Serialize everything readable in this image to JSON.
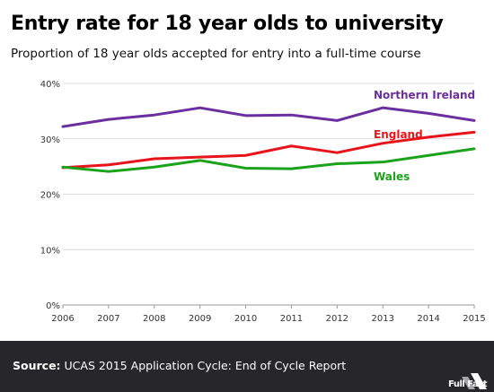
{
  "header": {
    "title": "Entry rate for 18 year olds to university",
    "subtitle": "Proportion of 18 year olds accepted for entry into a full-time course"
  },
  "footer": {
    "source_label": "Source:",
    "source_text": "UCAS 2015 Application Cycle: End of Cycle Report",
    "logo_text": "Full Fact"
  },
  "chart_data": {
    "type": "line",
    "title": "Entry rate for 18 year olds to university",
    "subtitle": "Proportion of 18 year olds accepted for entry into a full-time course",
    "x": [
      2006,
      2007,
      2008,
      2009,
      2010,
      2011,
      2012,
      2013,
      2014,
      2015
    ],
    "x_tick_labels": [
      "2006",
      "2007",
      "2008",
      "2009",
      "2010",
      "2011",
      "2012",
      "2013",
      "2014",
      "2015"
    ],
    "ylim": [
      0,
      40
    ],
    "y_ticks": [
      0,
      10,
      20,
      30,
      40
    ],
    "y_tick_labels": [
      "0%",
      "10%",
      "20%",
      "30%",
      "40%"
    ],
    "grid": true,
    "series": [
      {
        "name": "Northern Ireland",
        "color": "#6b2fa0",
        "values": [
          32.2,
          33.5,
          34.3,
          35.6,
          34.2,
          34.3,
          33.3,
          35.6,
          34.6,
          33.3
        ]
      },
      {
        "name": "England",
        "color": "#e8141b",
        "values": [
          24.8,
          25.3,
          26.4,
          26.7,
          27.0,
          28.7,
          27.5,
          29.2,
          30.3,
          31.2
        ]
      },
      {
        "name": "Wales",
        "color": "#1aa31a",
        "values": [
          24.9,
          24.1,
          24.9,
          26.1,
          24.7,
          24.6,
          25.5,
          25.8,
          27.0,
          28.2
        ]
      }
    ]
  }
}
